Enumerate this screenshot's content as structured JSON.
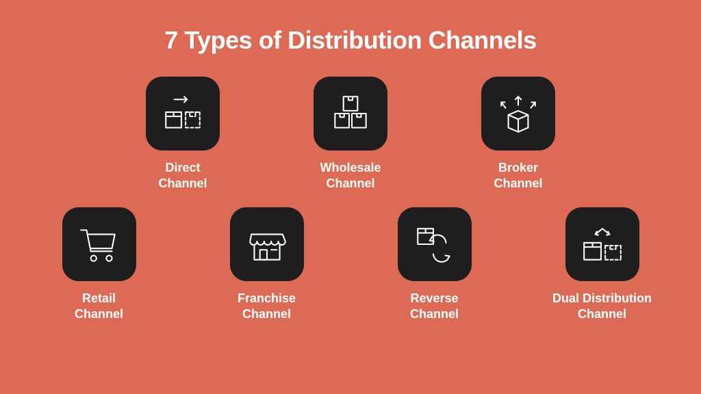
{
  "background_color": "#dd6a55",
  "tile_color": "#1e1e1e",
  "icon_stroke": "#ffffff",
  "text_color": "#ffffff",
  "title": "7 Types of Distribution Channels",
  "title_fontsize": 36,
  "label_fontsize": 18,
  "tile_size": 108,
  "tile_radius": 24,
  "row1": [
    {
      "name": "direct",
      "label": "Direct\nChannel"
    },
    {
      "name": "wholesale",
      "label": "Wholesale\nChannel"
    },
    {
      "name": "broker",
      "label": "Broker\nChannel"
    }
  ],
  "row2": [
    {
      "name": "retail",
      "label": "Retail\nChannel"
    },
    {
      "name": "franchise",
      "label": "Franchise\nChannel"
    },
    {
      "name": "reverse",
      "label": "Reverse\nChannel"
    },
    {
      "name": "dual",
      "label": "Dual Distribution\nChannel"
    }
  ]
}
